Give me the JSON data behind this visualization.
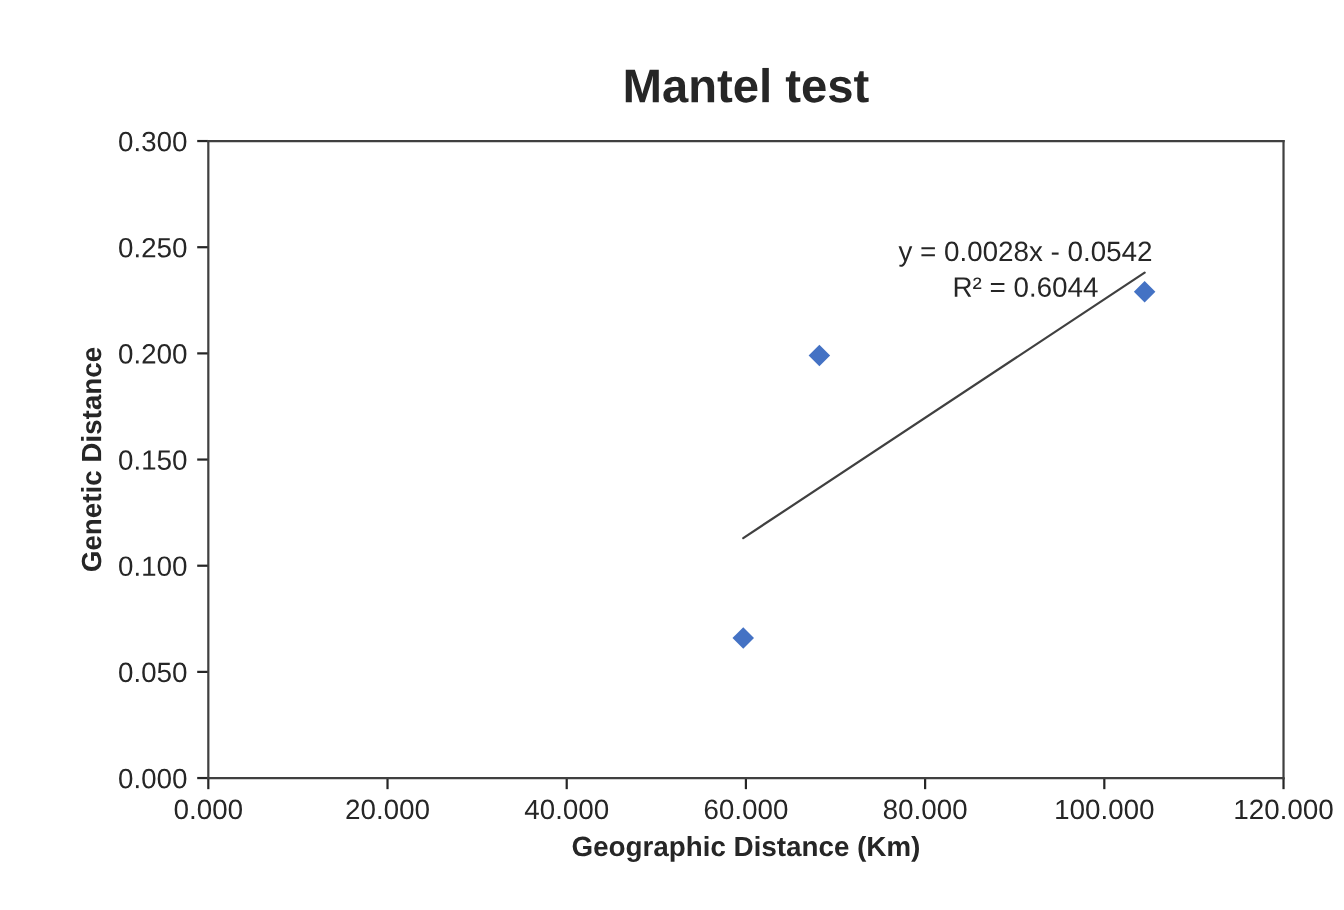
{
  "chart_data": {
    "type": "scatter",
    "title": "Mantel test",
    "xlabel": "Geographic Distance (Km)",
    "ylabel": "Genetic Distance",
    "xlim": [
      0,
      120
    ],
    "ylim": [
      0,
      0.3
    ],
    "xticks": [
      {
        "value": 0,
        "label": "0.000"
      },
      {
        "value": 20,
        "label": "20.000"
      },
      {
        "value": 40,
        "label": "40.000"
      },
      {
        "value": 60,
        "label": "60.000"
      },
      {
        "value": 80,
        "label": "80.000"
      },
      {
        "value": 100,
        "label": "100.000"
      },
      {
        "value": 120,
        "label": "120.000"
      }
    ],
    "yticks": [
      {
        "value": 0,
        "label": "0.000"
      },
      {
        "value": 0.05,
        "label": "0.050"
      },
      {
        "value": 0.1,
        "label": "0.100"
      },
      {
        "value": 0.15,
        "label": "0.150"
      },
      {
        "value": 0.2,
        "label": "0.200"
      },
      {
        "value": 0.25,
        "label": "0.250"
      },
      {
        "value": 0.3,
        "label": "0.300"
      }
    ],
    "grid": false,
    "legend": false,
    "series": [
      {
        "color": "#4472c4",
        "marker": "diamond",
        "x": [
          59.7,
          68.2,
          104.5
        ],
        "values": [
          0.066,
          0.199,
          0.229
        ]
      },
      {
        "type": "line",
        "color": "#404040",
        "marker": "none",
        "line_style": "solid",
        "x": [
          59.7,
          104.5
        ],
        "values": [
          0.113,
          0.238
        ]
      }
    ],
    "annotations": [
      "y = 0.0028x - 0.0542",
      "R² = 0.6044"
    ]
  }
}
